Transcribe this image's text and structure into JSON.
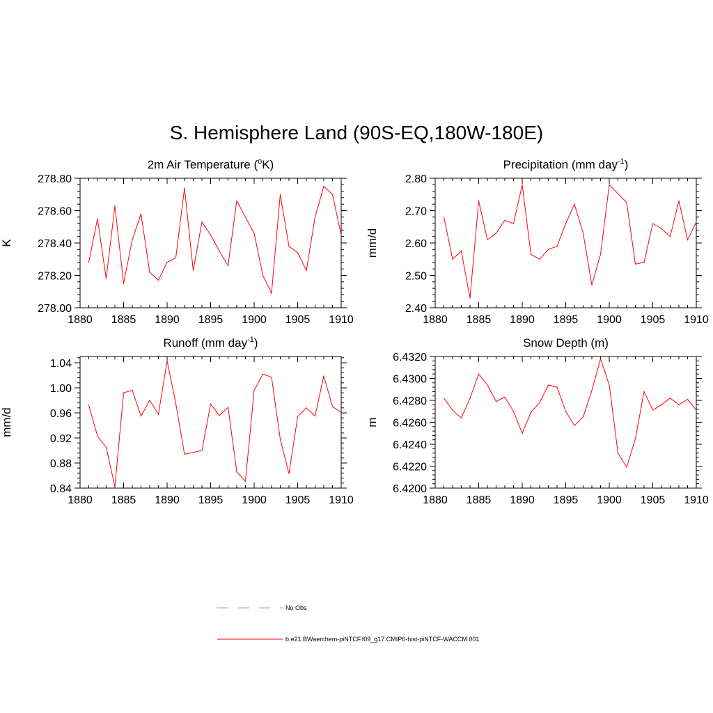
{
  "main_title": "S. Hemisphere Land (90S-EQ,180W-180E)",
  "legend": [
    {
      "label": "No Obs",
      "color": "#9999dd",
      "dash": true
    },
    {
      "label": "b.e21.BWaerchem-piNTCF.f09_g17.CMIP6-hist-piNTCF-WACCM.001",
      "color": "#ff0000",
      "dash": false
    }
  ],
  "line_color": "#ff0000",
  "chart_data": [
    {
      "type": "line",
      "title": "2m Air Temperature (°K)",
      "ylabel": "K",
      "xlim": [
        1880,
        1910
      ],
      "ylim": [
        278.0,
        278.8
      ],
      "xticks": [
        "1880",
        "1885",
        "1890",
        "1895",
        "1900",
        "1905",
        "1910"
      ],
      "yticks": [
        "278.00",
        "278.20",
        "278.40",
        "278.60",
        "278.80"
      ],
      "x": [
        1881,
        1882,
        1883,
        1884,
        1885,
        1886,
        1887,
        1888,
        1889,
        1890,
        1891,
        1892,
        1893,
        1894,
        1895,
        1896,
        1897,
        1898,
        1899,
        1900,
        1901,
        1902,
        1903,
        1904,
        1905,
        1906,
        1907,
        1908,
        1909,
        1910
      ],
      "values": [
        278.28,
        278.55,
        278.18,
        278.63,
        278.15,
        278.42,
        278.58,
        278.22,
        278.17,
        278.28,
        278.31,
        278.74,
        278.23,
        278.53,
        278.45,
        278.35,
        278.26,
        278.66,
        278.56,
        278.46,
        278.2,
        278.09,
        278.7,
        278.38,
        278.34,
        278.23,
        278.56,
        278.75,
        278.7,
        278.45
      ]
    },
    {
      "type": "line",
      "title": "Precipitation (mm day-1)",
      "ylabel": "mm/d",
      "xlim": [
        1880,
        1910
      ],
      "ylim": [
        2.4,
        2.8
      ],
      "xticks": [
        "1880",
        "1885",
        "1890",
        "1895",
        "1900",
        "1905",
        "1910"
      ],
      "yticks": [
        "2.40",
        "2.50",
        "2.60",
        "2.70",
        "2.80"
      ],
      "x": [
        1881,
        1882,
        1883,
        1884,
        1885,
        1886,
        1887,
        1888,
        1889,
        1890,
        1891,
        1892,
        1893,
        1894,
        1895,
        1896,
        1897,
        1898,
        1899,
        1900,
        1902,
        1903,
        1904,
        1905,
        1906,
        1907,
        1908,
        1909,
        1910
      ],
      "values": [
        2.68,
        2.55,
        2.575,
        2.43,
        2.73,
        2.61,
        2.63,
        2.67,
        2.66,
        2.78,
        2.565,
        2.55,
        2.58,
        2.59,
        2.66,
        2.72,
        2.63,
        2.47,
        2.565,
        2.78,
        2.725,
        2.535,
        2.54,
        2.66,
        2.645,
        2.62,
        2.73,
        2.61,
        2.665
      ]
    },
    {
      "type": "line",
      "title": "Runoff (mm day-1)",
      "ylabel": "mm/d",
      "xlim": [
        1880,
        1910
      ],
      "ylim": [
        0.84,
        1.05
      ],
      "xticks": [
        "1880",
        "1885",
        "1890",
        "1895",
        "1900",
        "1905",
        "1910"
      ],
      "yticks": [
        "0.84",
        "0.88",
        "0.92",
        "0.96",
        "1.00",
        "1.04"
      ],
      "x": [
        1881,
        1882,
        1883,
        1884,
        1885,
        1886,
        1887,
        1888,
        1889,
        1890,
        1891,
        1892,
        1894,
        1895,
        1896,
        1897,
        1898,
        1899,
        1900,
        1901,
        1902,
        1903,
        1904,
        1905,
        1906,
        1907,
        1908,
        1909,
        1910
      ],
      "values": [
        0.972,
        0.923,
        0.905,
        0.842,
        0.992,
        0.996,
        0.955,
        0.98,
        0.958,
        1.043,
        0.975,
        0.894,
        0.9,
        0.974,
        0.956,
        0.969,
        0.866,
        0.851,
        0.996,
        1.022,
        1.017,
        0.918,
        0.863,
        0.954,
        0.968,
        0.955,
        1.019,
        0.97,
        0.961
      ]
    },
    {
      "type": "line",
      "title": "Snow Depth (m)",
      "ylabel": "m",
      "xlim": [
        1880,
        1910
      ],
      "ylim": [
        6.42,
        6.432
      ],
      "xticks": [
        "1880",
        "1885",
        "1890",
        "1895",
        "1900",
        "1905",
        "1910"
      ],
      "yticks": [
        "6.4200",
        "6.4220",
        "6.4240",
        "6.4260",
        "6.4280",
        "6.4300",
        "6.4320"
      ],
      "x": [
        1881,
        1882,
        1883,
        1884,
        1885,
        1886,
        1887,
        1888,
        1889,
        1890,
        1891,
        1892,
        1893,
        1894,
        1895,
        1896,
        1897,
        1898,
        1899,
        1900,
        1901,
        1902,
        1903,
        1904,
        1905,
        1906,
        1907,
        1908,
        1909,
        1910
      ],
      "values": [
        6.4282,
        6.4271,
        6.4264,
        6.4282,
        6.4304,
        6.4294,
        6.4279,
        6.4283,
        6.427,
        6.425,
        6.4269,
        6.4278,
        6.4294,
        6.4292,
        6.427,
        6.4257,
        6.4265,
        6.4289,
        6.4318,
        6.4294,
        6.4232,
        6.4219,
        6.4245,
        6.4288,
        6.4271,
        6.4276,
        6.4282,
        6.4276,
        6.4281,
        6.4271
      ]
    }
  ]
}
